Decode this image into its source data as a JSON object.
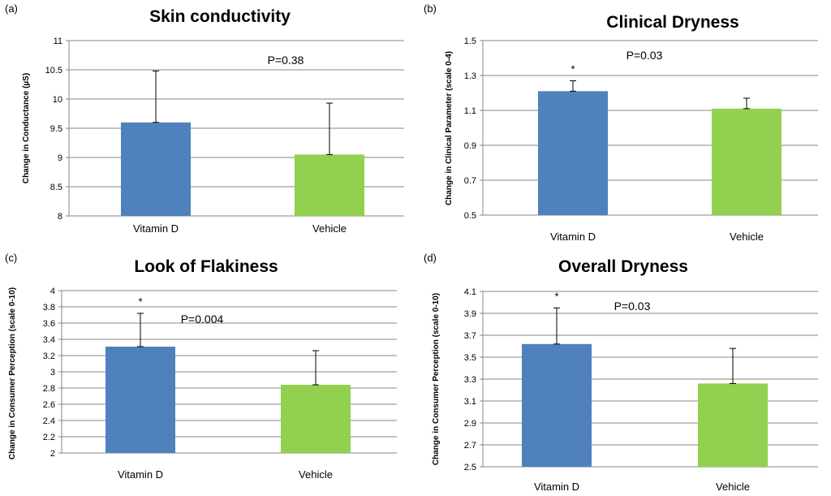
{
  "chart_data": [
    {
      "panel_label": "(a)",
      "type": "bar",
      "title": "Skin conductivity",
      "ylabel": "Change in Conductance  (µS)",
      "xlabel": "",
      "categories": [
        "Vitamin D",
        "Vehicle"
      ],
      "values": [
        9.6,
        9.05
      ],
      "error_upper": [
        0.88,
        0.88
      ],
      "colors": [
        "#4f81bd",
        "#92d050"
      ],
      "ylim": [
        8,
        11
      ],
      "yticks": [
        "8",
        "8.5",
        "9",
        "9.5",
        "10",
        "10.5",
        "11"
      ],
      "p_value": "P=0.38",
      "markers": [
        "",
        ""
      ],
      "grid": "horizontal"
    },
    {
      "panel_label": "(b)",
      "type": "bar",
      "title": "Clinical Dryness",
      "ylabel": "Change in Clinical  Parameter (scale 0-4)",
      "xlabel": "",
      "categories": [
        "Vitamin D",
        "Vehicle"
      ],
      "values": [
        1.21,
        1.11
      ],
      "error_upper": [
        0.06,
        0.06
      ],
      "colors": [
        "#4f81bd",
        "#92d050"
      ],
      "ylim": [
        0.5,
        1.5
      ],
      "yticks": [
        "0.5",
        "0.7",
        "0.9",
        "1.1",
        "1.3",
        "1.5"
      ],
      "p_value": "P=0.03",
      "markers": [
        "*",
        ""
      ],
      "grid": "horizontal"
    },
    {
      "panel_label": "(c)",
      "type": "bar",
      "title": "Look of Flakiness",
      "ylabel": "Change in Consumer Perception  (scale 0-10)",
      "xlabel": "",
      "categories": [
        "Vitamin D",
        "Vehicle"
      ],
      "values": [
        3.31,
        2.84
      ],
      "error_upper": [
        0.41,
        0.42
      ],
      "colors": [
        "#4f81bd",
        "#92d050"
      ],
      "ylim": [
        2,
        4
      ],
      "yticks": [
        "2",
        "2.2",
        "2.4",
        "2.6",
        "2.8",
        "3",
        "3.2",
        "3.4",
        "3.6",
        "3.8",
        "4"
      ],
      "p_value": "P=0.004",
      "markers": [
        "*",
        ""
      ],
      "grid": "horizontal"
    },
    {
      "panel_label": "(d)",
      "type": "bar",
      "title": "Overall Dryness",
      "ylabel": "Change in Consumer Perception (scale 0-10)",
      "xlabel": "",
      "categories": [
        "Vitamin D",
        "Vehicle"
      ],
      "values": [
        3.62,
        3.26
      ],
      "error_upper": [
        0.33,
        0.32
      ],
      "colors": [
        "#4f81bd",
        "#92d050"
      ],
      "ylim": [
        2.5,
        4.1
      ],
      "yticks": [
        "2.5",
        "2.7",
        "2.9",
        "3.1",
        "3.3",
        "3.5",
        "3.7",
        "3.9",
        "4.1"
      ],
      "p_value": "P=0.03",
      "markers": [
        "*",
        ""
      ],
      "grid": "horizontal"
    }
  ]
}
